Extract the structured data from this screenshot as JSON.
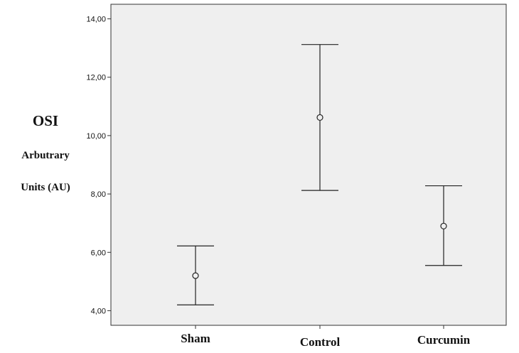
{
  "chart_data": {
    "type": "errorbar",
    "ylabel": [
      "OSI",
      "Arbutrary",
      "Units (AU)"
    ],
    "categories": [
      "Sham",
      "Control",
      "Curcumin"
    ],
    "ylim": [
      3.5,
      14.5
    ],
    "yticks": [
      "4,00",
      "6,00",
      "8,00",
      "10,00",
      "12,00",
      "14,00"
    ],
    "ytick_values": [
      4,
      6,
      8,
      10,
      12,
      14
    ],
    "series": [
      {
        "values": [
          5.2,
          10.62,
          6.9
        ],
        "lower": [
          4.2,
          8.12,
          5.55
        ],
        "upper": [
          6.22,
          13.12,
          8.28
        ]
      }
    ],
    "grid": false,
    "background": "#efefef"
  }
}
